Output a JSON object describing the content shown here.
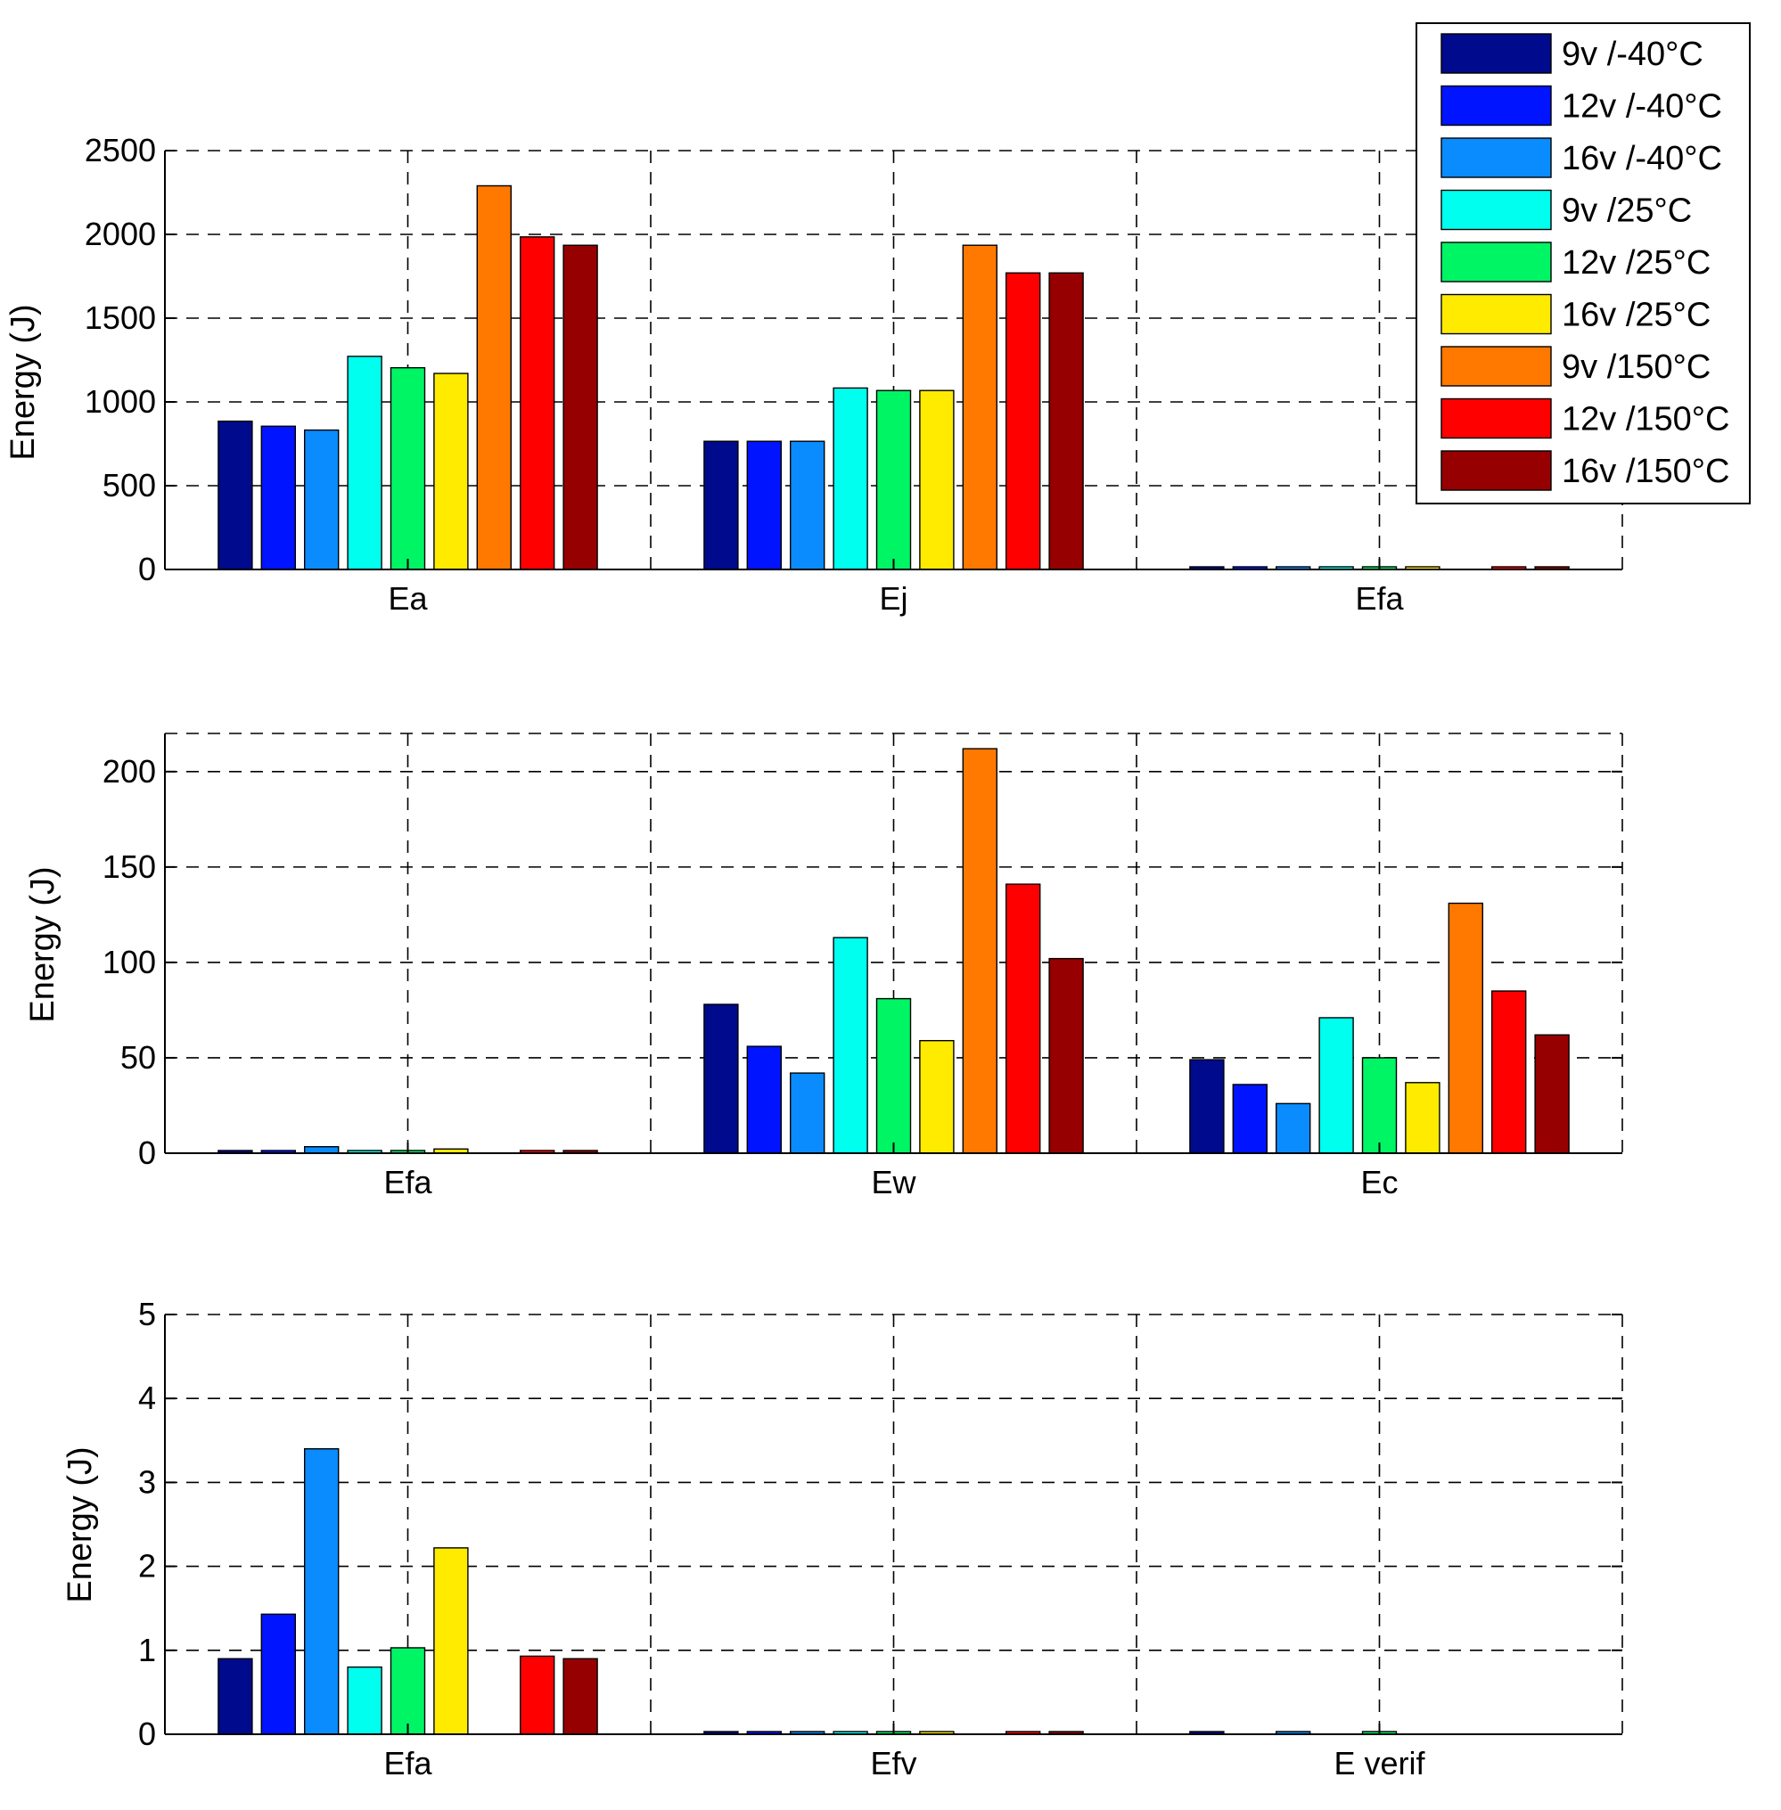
{
  "chart_data": [
    {
      "type": "bar",
      "ylabel": "Energy (J)",
      "ylim": [
        0,
        2500
      ],
      "yticks": [
        "0",
        "500",
        "1000",
        "1500",
        "2000",
        "2500"
      ],
      "ytick_values": [
        0,
        500,
        1000,
        1500,
        2000,
        2500
      ],
      "grid": true,
      "categories": [
        "Ea",
        "Ej",
        "Efa"
      ],
      "series": [
        {
          "name": "9v /-40°C",
          "values": [
            885,
            765,
            10
          ]
        },
        {
          "name": "12v /-40°C",
          "values": [
            855,
            765,
            10
          ]
        },
        {
          "name": "16v /-40°C",
          "values": [
            832,
            765,
            10
          ]
        },
        {
          "name": "9v /25°C",
          "values": [
            1272,
            1083,
            10
          ]
        },
        {
          "name": "12v /25°C",
          "values": [
            1204,
            1068,
            10
          ]
        },
        {
          "name": "16v /25°C",
          "values": [
            1170,
            1068,
            10
          ]
        },
        {
          "name": "9v /150°C",
          "values": [
            2290,
            1935,
            0
          ]
        },
        {
          "name": "12v /150°C",
          "values": [
            1985,
            1770,
            10
          ]
        },
        {
          "name": "16v /150°C",
          "values": [
            1935,
            1770,
            10
          ]
        }
      ]
    },
    {
      "type": "bar",
      "ylabel": "Energy (J)",
      "ylim": [
        0,
        220
      ],
      "yticks": [
        "0",
        "50",
        "100",
        "150",
        "200"
      ],
      "ytick_values": [
        0,
        50,
        100,
        150,
        200
      ],
      "grid": true,
      "categories": [
        "Efa",
        "Ew",
        "Ec"
      ],
      "series": [
        {
          "name": "9v /-40°C",
          "values": [
            0.9,
            78,
            49
          ]
        },
        {
          "name": "12v /-40°C",
          "values": [
            1.4,
            56,
            36
          ]
        },
        {
          "name": "16v /-40°C",
          "values": [
            3.4,
            42,
            26
          ]
        },
        {
          "name": "9v /25°C",
          "values": [
            0.8,
            113,
            71
          ]
        },
        {
          "name": "12v /25°C",
          "values": [
            1.0,
            81,
            50
          ]
        },
        {
          "name": "16v /25°C",
          "values": [
            2.2,
            59,
            37
          ]
        },
        {
          "name": "9v /150°C",
          "values": [
            0,
            212,
            131
          ]
        },
        {
          "name": "12v /150°C",
          "values": [
            0.9,
            141,
            85
          ]
        },
        {
          "name": "16v /150°C",
          "values": [
            0.9,
            102,
            62
          ]
        }
      ]
    },
    {
      "type": "bar",
      "ylabel": "Energy (J)",
      "ylim": [
        0,
        5
      ],
      "yticks": [
        "0",
        "1",
        "2",
        "3",
        "4",
        "5"
      ],
      "ytick_values": [
        0,
        1,
        2,
        3,
        4,
        5
      ],
      "grid": true,
      "categories": [
        "Efa",
        "Efv",
        "E verif"
      ],
      "series": [
        {
          "name": "9v /-40°C",
          "values": [
            0.9,
            0.03,
            0.03
          ]
        },
        {
          "name": "12v /-40°C",
          "values": [
            1.43,
            0.03,
            0
          ]
        },
        {
          "name": "16v /-40°C",
          "values": [
            3.4,
            0.03,
            0.03
          ]
        },
        {
          "name": "9v /25°C",
          "values": [
            0.8,
            0.03,
            0
          ]
        },
        {
          "name": "12v /25°C",
          "values": [
            1.03,
            0.03,
            0.03
          ]
        },
        {
          "name": "16v /25°C",
          "values": [
            2.22,
            0.03,
            0
          ]
        },
        {
          "name": "9v /150°C",
          "values": [
            0,
            0,
            0
          ]
        },
        {
          "name": "12v /150°C",
          "values": [
            0.93,
            0.03,
            0
          ]
        },
        {
          "name": "16v /150°C",
          "values": [
            0.9,
            0.03,
            0
          ]
        }
      ]
    }
  ],
  "legend": {
    "entries": [
      "9v /-40°C",
      "12v /-40°C",
      "16v /-40°C",
      "9v /25°C",
      "12v /25°C",
      "16v /25°C",
      "9v /150°C",
      "12v /150°C",
      "16v /150°C"
    ],
    "colors": [
      "#000a8c",
      "#0014ff",
      "#0a8cff",
      "#00ffee",
      "#00f564",
      "#ffeb00",
      "#ff7800",
      "#ff0000",
      "#960000"
    ],
    "placement": "top-right"
  }
}
